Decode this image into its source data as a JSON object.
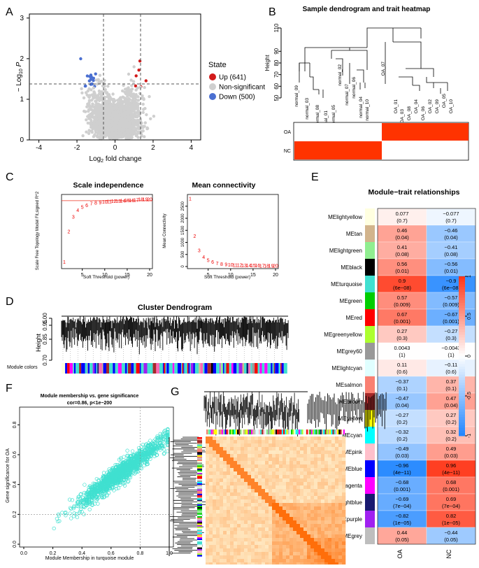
{
  "colors": {
    "up": "#d21a1a",
    "down": "#4a6fd1",
    "ns": "#cfcfcf",
    "turq": "#40e0d0",
    "orange": "#f5b16a",
    "red_cell": "#ff3300"
  },
  "panel_labels": {
    "a": "A",
    "b": "B",
    "c": "C",
    "d": "D",
    "e": "E",
    "f": "F",
    "g": "G"
  },
  "volcano": {
    "ylabel_prefix": "− Log",
    "ylabel_sub": "10",
    "ylabel_suffix": " P",
    "xlabel_prefix": "Log",
    "xlabel_sub": "2",
    "xlabel_suffix": " fold change",
    "legend_title": "State",
    "legend": [
      {
        "label": "Up (641)",
        "color": "#d21a1a"
      },
      {
        "label": "Non-significant",
        "color": "#cfcfcf"
      },
      {
        "label": "Down (500)",
        "color": "#4a6fd1"
      }
    ],
    "x_ticks": [
      "-4",
      "-2",
      "0",
      "2",
      "4"
    ],
    "y_ticks": [
      "0",
      "1",
      "2",
      "3"
    ]
  },
  "dendro_b": {
    "title": "Sample dendrogram and trait heatmap",
    "ylabel": "Height",
    "y_ticks": [
      "50",
      "60",
      "70",
      "80",
      "90",
      "110"
    ],
    "samples": [
      "normal_09",
      "normal_03",
      "normal_08",
      "normal_01",
      "normal_05",
      "normal_02",
      "normal_07",
      "normal_06",
      "normal_04",
      "normal_10",
      "OA_07",
      "OA_01",
      "OA_03",
      "OA_08",
      "OA_04",
      "OA_06",
      "OA_02",
      "OA_09",
      "OA_05",
      "OA_10"
    ],
    "traits": [
      "OA",
      "NC"
    ]
  },
  "scale_free": {
    "title": "Scale independence",
    "xlabel": "Soft Threshold (power)",
    "ylabel": "Scale Free Topology Model Fit,signed R^2",
    "x_ticks": [
      "5",
      "10",
      "15",
      "20"
    ],
    "powers": [
      1,
      2,
      3,
      4,
      5,
      6,
      7,
      8,
      9,
      10,
      11,
      12,
      13,
      14,
      15,
      16,
      17,
      18,
      19,
      20
    ],
    "r2": [
      0.05,
      0.42,
      0.6,
      0.68,
      0.72,
      0.74,
      0.76,
      0.77,
      0.775,
      0.78,
      0.785,
      0.79,
      0.79,
      0.795,
      0.8,
      0.8,
      0.805,
      0.81,
      0.81,
      0.81
    ],
    "cutoff": 0.8
  },
  "mean_conn": {
    "title": "Mean connectivity",
    "xlabel": "Soft Threshold (power)",
    "ylabel": "Mean Connectivity",
    "x_ticks": [
      "5",
      "10",
      "15",
      "20"
    ],
    "y_ticks": [
      "0",
      "500",
      "1000",
      "1500",
      "2000",
      "2500"
    ],
    "powers": [
      1,
      2,
      3,
      4,
      5,
      6,
      7,
      8,
      9,
      10,
      11,
      12,
      13,
      14,
      15,
      16,
      17,
      18,
      19,
      20
    ],
    "k": [
      2800,
      1250,
      650,
      380,
      240,
      170,
      120,
      90,
      70,
      55,
      45,
      38,
      32,
      28,
      25,
      22,
      20,
      18,
      16,
      15
    ]
  },
  "cluster": {
    "title": "Cluster Dendrogram",
    "ylabel": "Height",
    "y_ticks": [
      "0.70",
      "0.85",
      "0.95",
      "1.00"
    ],
    "colors_label": "Module colors"
  },
  "mtr": {
    "title": "Module−trait relationships",
    "columns": [
      "OA",
      "NC"
    ],
    "scale_ticks": [
      "1",
      "0.5",
      "0",
      "-0.5",
      "-1"
    ],
    "modules": [
      {
        "name": "MElightyellow",
        "color": "#ffffe0",
        "oa": "0.077",
        "oa_p": "(0.7)",
        "nc": "−0.077",
        "nc_p": "(0.7)",
        "v": 0.077
      },
      {
        "name": "MEtan",
        "color": "#d2b48c",
        "oa": "0.46",
        "oa_p": "(0.04)",
        "nc": "−0.46",
        "nc_p": "(0.04)",
        "v": 0.46
      },
      {
        "name": "MElightgreen",
        "color": "#90ee90",
        "oa": "0.41",
        "oa_p": "(0.08)",
        "nc": "−0.41",
        "nc_p": "(0.08)",
        "v": 0.41
      },
      {
        "name": "MEblack",
        "color": "#000000",
        "oa": "0.56",
        "oa_p": "(0.01)",
        "nc": "−0.56",
        "nc_p": "(0.01)",
        "v": 0.56
      },
      {
        "name": "MEturquoise",
        "color": "#40e0d0",
        "oa": "0.9",
        "oa_p": "(6e−08)",
        "nc": "−0.9",
        "nc_p": "(6e−08)",
        "v": 0.9
      },
      {
        "name": "MEgreen",
        "color": "#00cd00",
        "oa": "0.57",
        "oa_p": "(0.009)",
        "nc": "−0.57",
        "nc_p": "(0.009)",
        "v": 0.57
      },
      {
        "name": "MEred",
        "color": "#ff0000",
        "oa": "0.67",
        "oa_p": "(0.001)",
        "nc": "−0.67",
        "nc_p": "(0.001)",
        "v": 0.67
      },
      {
        "name": "MEgreenyellow",
        "color": "#adff2f",
        "oa": "0.27",
        "oa_p": "(0.3)",
        "nc": "−0.27",
        "nc_p": "(0.3)",
        "v": 0.27
      },
      {
        "name": "MEgrey60",
        "color": "#999999",
        "oa": "0.0043",
        "oa_p": "(1)",
        "nc": "−0.0043",
        "nc_p": "(1)",
        "v": 0.0043
      },
      {
        "name": "MElightcyan",
        "color": "#e0ffff",
        "oa": "0.11",
        "oa_p": "(0.6)",
        "nc": "−0.11",
        "nc_p": "(0.6)",
        "v": 0.11
      },
      {
        "name": "MEsalmon",
        "color": "#fa8072",
        "oa": "−0.37",
        "oa_p": "(0.1)",
        "nc": "0.37",
        "nc_p": "(0.1)",
        "v": -0.37
      },
      {
        "name": "MEbrown",
        "color": "#a52a2a",
        "oa": "−0.47",
        "oa_p": "(0.04)",
        "nc": "0.47",
        "nc_p": "(0.04)",
        "v": -0.47
      },
      {
        "name": "MEyellow",
        "color": "#ffff00",
        "oa": "−0.27",
        "oa_p": "(0.2)",
        "nc": "0.27",
        "nc_p": "(0.2)",
        "v": -0.27
      },
      {
        "name": "MEcyan",
        "color": "#00ffff",
        "oa": "−0.32",
        "oa_p": "(0.2)",
        "nc": "0.32",
        "nc_p": "(0.2)",
        "v": -0.32
      },
      {
        "name": "MEpink",
        "color": "#ffc0cb",
        "oa": "−0.49",
        "oa_p": "(0.03)",
        "nc": "0.49",
        "nc_p": "(0.03)",
        "v": -0.49
      },
      {
        "name": "MEblue",
        "color": "#0000ff",
        "oa": "−0.96",
        "oa_p": "(4e−11)",
        "nc": "0.96",
        "nc_p": "(4e−11)",
        "v": -0.96
      },
      {
        "name": "MEmagenta",
        "color": "#ff00ff",
        "oa": "−0.68",
        "oa_p": "(0.001)",
        "nc": "0.68",
        "nc_p": "(0.001)",
        "v": -0.68
      },
      {
        "name": "MEmidnightblue",
        "color": "#191970",
        "oa": "−0.69",
        "oa_p": "(7e−04)",
        "nc": "0.69",
        "nc_p": "(7e−04)",
        "v": -0.69
      },
      {
        "name": "MEpurple",
        "color": "#a020f0",
        "oa": "−0.82",
        "oa_p": "(1e−05)",
        "nc": "0.82",
        "nc_p": "(1e−05)",
        "v": -0.82
      },
      {
        "name": "MEgrey",
        "color": "#bebebe",
        "oa": "0.44",
        "oa_p": "(0.05)",
        "nc": "−0.44",
        "nc_p": "(0.05)",
        "v": 0.44
      }
    ]
  },
  "scatter_f": {
    "title": "Module membership vs. gene significance",
    "subtitle": "cor=0.86, p<1e−200",
    "xlabel": "Module Membership in turquoise module",
    "ylabel": "Gene significance for OA",
    "x_ticks": [
      "0.0",
      "0.2",
      "0.4",
      "0.6",
      "0.8",
      "1.0"
    ],
    "y_ticks": [
      "0.0",
      "0.2",
      "0.4",
      "0.6",
      "0.8"
    ],
    "xlim": [
      0,
      1
    ],
    "ylim": [
      0,
      0.9
    ]
  },
  "chart_data": [
    {
      "type": "scatter",
      "title": "Volcano plot",
      "xlabel": "Log2 fold change",
      "ylabel": "−Log10 P",
      "xlim": [
        -4.5,
        4.5
      ],
      "ylim": [
        0,
        3.1
      ],
      "series": [
        {
          "name": "Up (641)"
        },
        {
          "name": "Non-significant"
        },
        {
          "name": "Down (500)"
        }
      ],
      "thresholds": {
        "fc": [
          -1,
          1
        ],
        "p": 1.3
      }
    },
    {
      "type": "scatter",
      "title": "Scale independence",
      "x": [
        1,
        2,
        3,
        4,
        5,
        6,
        7,
        8,
        9,
        10,
        11,
        12,
        13,
        14,
        15,
        16,
        17,
        18,
        19,
        20
      ],
      "y": [
        0.05,
        0.42,
        0.6,
        0.68,
        0.72,
        0.74,
        0.76,
        0.77,
        0.775,
        0.78,
        0.785,
        0.79,
        0.79,
        0.795,
        0.8,
        0.8,
        0.805,
        0.81,
        0.81,
        0.81
      ]
    },
    {
      "type": "scatter",
      "title": "Mean connectivity",
      "x": [
        1,
        2,
        3,
        4,
        5,
        6,
        7,
        8,
        9,
        10,
        11,
        12,
        13,
        14,
        15,
        16,
        17,
        18,
        19,
        20
      ],
      "y": [
        2800,
        1250,
        650,
        380,
        240,
        170,
        120,
        90,
        70,
        55,
        45,
        38,
        32,
        28,
        25,
        22,
        20,
        18,
        16,
        15
      ]
    },
    {
      "type": "heatmap",
      "title": "Module−trait relationships",
      "columns": [
        "OA",
        "NC"
      ]
    },
    {
      "type": "scatter",
      "title": "Module membership vs. gene significance",
      "subtitle": "cor=0.86, p<1e−200",
      "xlim": [
        0,
        1
      ],
      "ylim": [
        0,
        0.9
      ]
    }
  ]
}
